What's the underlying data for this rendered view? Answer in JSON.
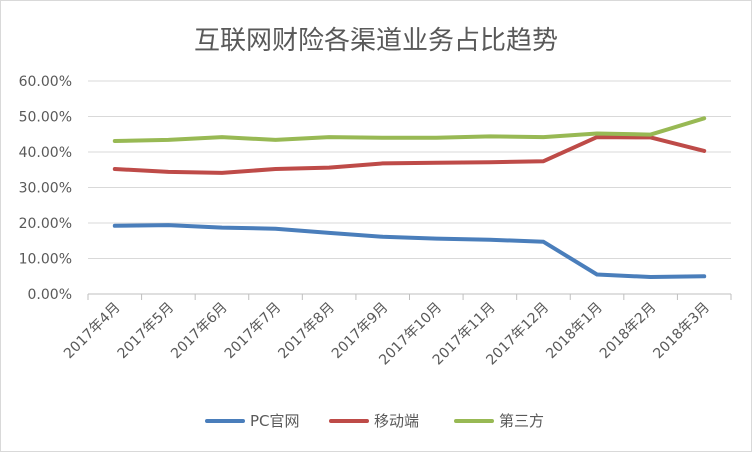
{
  "chart_data": {
    "type": "line",
    "title": "互联网财险各渠道业务占比趋势",
    "xlabel": "",
    "ylabel": "",
    "categories": [
      "2017年4月",
      "2017年5月",
      "2017年6月",
      "2017年7月",
      "2017年8月",
      "2017年9月",
      "2017年10月",
      "2017年11月",
      "2017年12月",
      "2018年1月",
      "2018年2月",
      "2018年3月"
    ],
    "ylim": [
      0,
      0.6
    ],
    "yticks": [
      "0.00%",
      "10.00%",
      "20.00%",
      "30.00%",
      "40.00%",
      "50.00%",
      "60.00%"
    ],
    "grid": true,
    "legend_position": "bottom",
    "series": [
      {
        "name": "PC官网",
        "color": "#4a7ebb",
        "values": [
          0.192,
          0.194,
          0.187,
          0.184,
          0.172,
          0.161,
          0.156,
          0.153,
          0.147,
          0.055,
          0.048,
          0.05
        ]
      },
      {
        "name": "移动端",
        "color": "#be4b48",
        "values": [
          0.352,
          0.344,
          0.341,
          0.352,
          0.356,
          0.368,
          0.37,
          0.371,
          0.374,
          0.442,
          0.441,
          0.403
        ]
      },
      {
        "name": "第三方",
        "color": "#98b954",
        "values": [
          0.431,
          0.434,
          0.442,
          0.434,
          0.442,
          0.44,
          0.44,
          0.444,
          0.442,
          0.452,
          0.449,
          0.495
        ]
      }
    ]
  }
}
